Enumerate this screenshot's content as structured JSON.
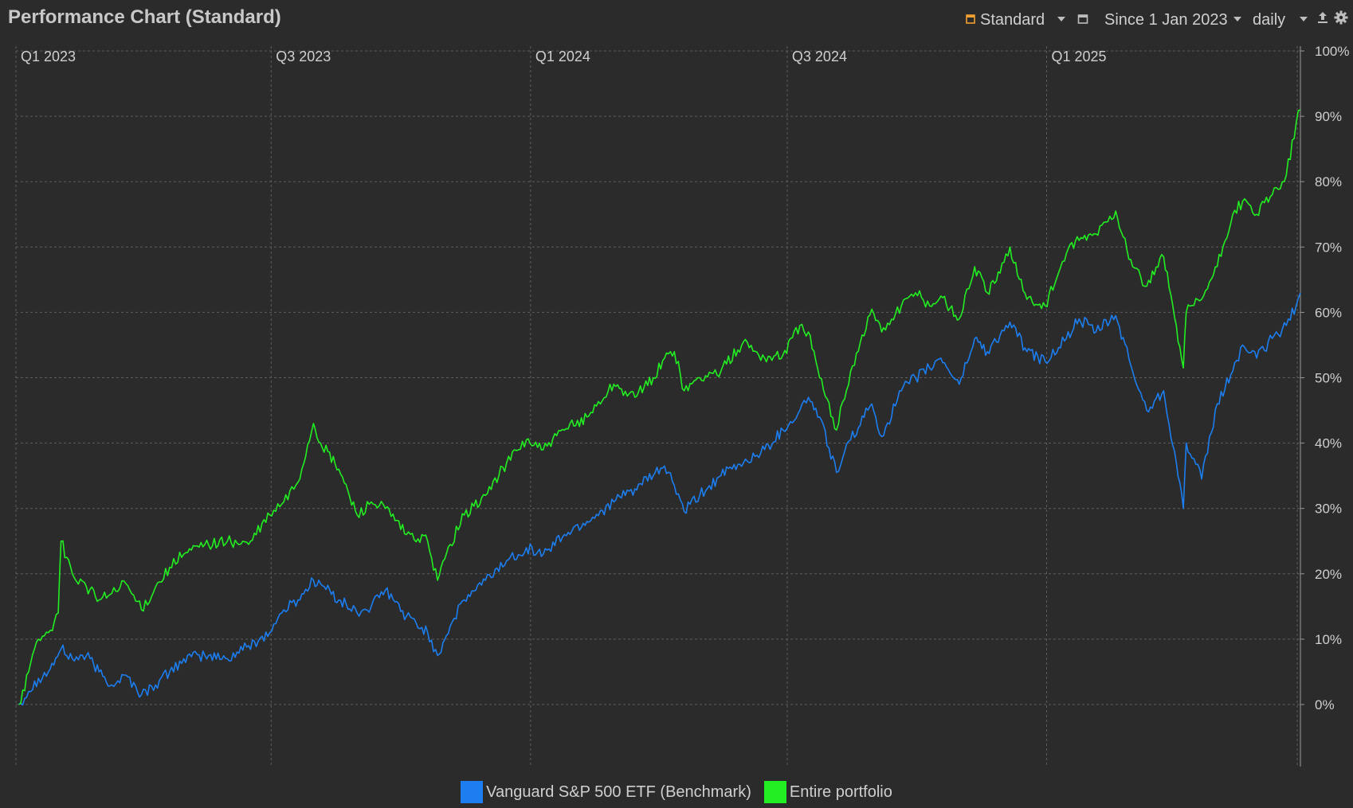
{
  "header": {
    "title": "Performance Chart (Standard)",
    "view_label": "Standard",
    "period_label": "Since 1 Jan 2023",
    "interval_label": "daily"
  },
  "icons": {
    "view": "chart-view-icon",
    "period": "calendar-icon",
    "export": "export-icon",
    "settings": "gear-icon",
    "dropdown": "chevron-down-icon"
  },
  "colors": {
    "background": "#2b2b2b",
    "grid": "#5e5e5e",
    "benchmark": "#1c7ef0",
    "portfolio": "#22ee22",
    "view_icon": "#f0a030"
  },
  "chart_data": {
    "type": "line",
    "x_axis": {
      "type": "date",
      "range": [
        "2023-01-01",
        "2025-06-30"
      ],
      "ticks": [
        {
          "label": "Q1 2023",
          "date": "2023-01-01"
        },
        {
          "label": "Q3 2023",
          "date": "2023-07-01"
        },
        {
          "label": "Q1 2024",
          "date": "2024-01-01"
        },
        {
          "label": "Q3 2024",
          "date": "2024-07-01"
        },
        {
          "label": "Q1 2025",
          "date": "2025-01-01"
        }
      ]
    },
    "y_axis": {
      "unit": "%",
      "range": [
        -10,
        100
      ],
      "ticks": [
        0,
        10,
        20,
        30,
        40,
        50,
        60,
        70,
        80,
        90,
        100
      ],
      "tick_labels": [
        "0%",
        "10%",
        "20%",
        "30%",
        "40%",
        "50%",
        "60%",
        "70%",
        "80%",
        "90%",
        "100%"
      ],
      "position": "right"
    },
    "grid": true,
    "legend_position": "bottom-center",
    "series": [
      {
        "name": "Vanguard S&P 500 ETF (Benchmark)",
        "color": "#1c7ef0",
        "points": [
          [
            "2023-01-03",
            0
          ],
          [
            "2023-01-10",
            2
          ],
          [
            "2023-01-17",
            4
          ],
          [
            "2023-01-24",
            5
          ],
          [
            "2023-02-02",
            8.5
          ],
          [
            "2023-02-10",
            7
          ],
          [
            "2023-02-20",
            7.5
          ],
          [
            "2023-03-01",
            5
          ],
          [
            "2023-03-10",
            3
          ],
          [
            "2023-03-20",
            4.5
          ],
          [
            "2023-03-31",
            1.5
          ],
          [
            "2023-04-10",
            3
          ],
          [
            "2023-04-20",
            5
          ],
          [
            "2023-04-30",
            7
          ],
          [
            "2023-05-15",
            7.5
          ],
          [
            "2023-05-31",
            7
          ],
          [
            "2023-06-15",
            9
          ],
          [
            "2023-06-30",
            11
          ],
          [
            "2023-07-10",
            14.5
          ],
          [
            "2023-07-20",
            16
          ],
          [
            "2023-07-31",
            19
          ],
          [
            "2023-08-05",
            18.5
          ],
          [
            "2023-08-18",
            16
          ],
          [
            "2023-08-31",
            14
          ],
          [
            "2023-09-10",
            15
          ],
          [
            "2023-09-20",
            17.5
          ],
          [
            "2023-10-05",
            13.5
          ],
          [
            "2023-10-20",
            11
          ],
          [
            "2023-10-27",
            7.5
          ],
          [
            "2023-11-05",
            12
          ],
          [
            "2023-11-15",
            16
          ],
          [
            "2023-11-30",
            19
          ],
          [
            "2023-12-15",
            22
          ],
          [
            "2023-12-29",
            24
          ],
          [
            "2024-01-10",
            23
          ],
          [
            "2024-01-25",
            26
          ],
          [
            "2024-02-10",
            28
          ],
          [
            "2024-02-29",
            31
          ],
          [
            "2024-03-15",
            33
          ],
          [
            "2024-03-28",
            35
          ],
          [
            "2024-04-05",
            36.5
          ],
          [
            "2024-04-12",
            33.5
          ],
          [
            "2024-04-19",
            29.5
          ],
          [
            "2024-04-30",
            32
          ],
          [
            "2024-05-15",
            35
          ],
          [
            "2024-05-31",
            37
          ],
          [
            "2024-06-15",
            39
          ],
          [
            "2024-06-28",
            42
          ],
          [
            "2024-07-10",
            45
          ],
          [
            "2024-07-16",
            47
          ],
          [
            "2024-07-24",
            44
          ],
          [
            "2024-08-05",
            35.5
          ],
          [
            "2024-08-15",
            40.5
          ],
          [
            "2024-08-30",
            46
          ],
          [
            "2024-09-06",
            41
          ],
          [
            "2024-09-20",
            48
          ],
          [
            "2024-09-30",
            50
          ],
          [
            "2024-10-10",
            51.5
          ],
          [
            "2024-10-18",
            53
          ],
          [
            "2024-10-31",
            49
          ],
          [
            "2024-11-11",
            56
          ],
          [
            "2024-11-20",
            54
          ],
          [
            "2024-11-29",
            56.5
          ],
          [
            "2024-12-06",
            58.5
          ],
          [
            "2024-12-18",
            54
          ],
          [
            "2024-12-31",
            52.5
          ],
          [
            "2025-01-15",
            56
          ],
          [
            "2025-01-24",
            59
          ],
          [
            "2025-02-05",
            57
          ],
          [
            "2025-02-19",
            59.5
          ],
          [
            "2025-03-03",
            51
          ],
          [
            "2025-03-13",
            45
          ],
          [
            "2025-03-25",
            48
          ],
          [
            "2025-04-03",
            37
          ],
          [
            "2025-04-08",
            30
          ],
          [
            "2025-04-10",
            40
          ],
          [
            "2025-04-21",
            34.5
          ],
          [
            "2025-05-02",
            46
          ],
          [
            "2025-05-13",
            51
          ],
          [
            "2025-05-20",
            55
          ],
          [
            "2025-05-30",
            53
          ],
          [
            "2025-06-10",
            56
          ],
          [
            "2025-06-20",
            58
          ],
          [
            "2025-06-27",
            61
          ],
          [
            "2025-06-30",
            63
          ]
        ]
      },
      {
        "name": "Entire portfolio",
        "color": "#22ee22",
        "points": [
          [
            "2023-01-03",
            0
          ],
          [
            "2023-01-10",
            5
          ],
          [
            "2023-01-17",
            10
          ],
          [
            "2023-01-24",
            11
          ],
          [
            "2023-01-31",
            14
          ],
          [
            "2023-02-02",
            25
          ],
          [
            "2023-02-10",
            20
          ],
          [
            "2023-02-20",
            18
          ],
          [
            "2023-03-01",
            16
          ],
          [
            "2023-03-10",
            17
          ],
          [
            "2023-03-20",
            18.5
          ],
          [
            "2023-03-31",
            14.5
          ],
          [
            "2023-04-10",
            18
          ],
          [
            "2023-04-20",
            21
          ],
          [
            "2023-04-30",
            23
          ],
          [
            "2023-05-15",
            24.5
          ],
          [
            "2023-05-31",
            25
          ],
          [
            "2023-06-15",
            24.5
          ],
          [
            "2023-06-30",
            29
          ],
          [
            "2023-07-10",
            31
          ],
          [
            "2023-07-20",
            34
          ],
          [
            "2023-07-31",
            43
          ],
          [
            "2023-08-05",
            40
          ],
          [
            "2023-08-18",
            36
          ],
          [
            "2023-08-31",
            29
          ],
          [
            "2023-09-10",
            31
          ],
          [
            "2023-09-20",
            30
          ],
          [
            "2023-10-05",
            26
          ],
          [
            "2023-10-20",
            25
          ],
          [
            "2023-10-27",
            19
          ],
          [
            "2023-11-05",
            24.5
          ],
          [
            "2023-11-15",
            29
          ],
          [
            "2023-11-30",
            32
          ],
          [
            "2023-12-15",
            37
          ],
          [
            "2023-12-29",
            40.5
          ],
          [
            "2024-01-10",
            39
          ],
          [
            "2024-01-25",
            42
          ],
          [
            "2024-02-10",
            44
          ],
          [
            "2024-02-29",
            49
          ],
          [
            "2024-03-15",
            47
          ],
          [
            "2024-03-28",
            50
          ],
          [
            "2024-04-05",
            53
          ],
          [
            "2024-04-12",
            54
          ],
          [
            "2024-04-19",
            48
          ],
          [
            "2024-04-30",
            50
          ],
          [
            "2024-05-15",
            51
          ],
          [
            "2024-05-31",
            55.5
          ],
          [
            "2024-06-15",
            53
          ],
          [
            "2024-06-28",
            53.5
          ],
          [
            "2024-07-10",
            58
          ],
          [
            "2024-07-16",
            57
          ],
          [
            "2024-07-24",
            50
          ],
          [
            "2024-08-05",
            42
          ],
          [
            "2024-08-15",
            51
          ],
          [
            "2024-08-30",
            60.5
          ],
          [
            "2024-09-06",
            57
          ],
          [
            "2024-09-20",
            61
          ],
          [
            "2024-09-30",
            63
          ],
          [
            "2024-10-10",
            61
          ],
          [
            "2024-10-18",
            62.5
          ],
          [
            "2024-10-31",
            59
          ],
          [
            "2024-11-11",
            67
          ],
          [
            "2024-11-20",
            63
          ],
          [
            "2024-11-29",
            66
          ],
          [
            "2024-12-06",
            70
          ],
          [
            "2024-12-18",
            62
          ],
          [
            "2024-12-31",
            61
          ],
          [
            "2025-01-15",
            69
          ],
          [
            "2025-01-24",
            71
          ],
          [
            "2025-02-05",
            72
          ],
          [
            "2025-02-19",
            75.5
          ],
          [
            "2025-03-03",
            67
          ],
          [
            "2025-03-13",
            64
          ],
          [
            "2025-03-25",
            68.5
          ],
          [
            "2025-04-03",
            58
          ],
          [
            "2025-04-08",
            51.5
          ],
          [
            "2025-04-10",
            60
          ],
          [
            "2025-04-21",
            62
          ],
          [
            "2025-05-02",
            67
          ],
          [
            "2025-05-13",
            75
          ],
          [
            "2025-05-20",
            77
          ],
          [
            "2025-05-30",
            75
          ],
          [
            "2025-06-10",
            78
          ],
          [
            "2025-06-20",
            81
          ],
          [
            "2025-06-27",
            89
          ],
          [
            "2025-06-30",
            91
          ]
        ]
      }
    ]
  },
  "legend": [
    {
      "label": "Vanguard S&P 500 ETF (Benchmark)",
      "color": "#1c7ef0"
    },
    {
      "label": "Entire portfolio",
      "color": "#22ee22"
    }
  ]
}
